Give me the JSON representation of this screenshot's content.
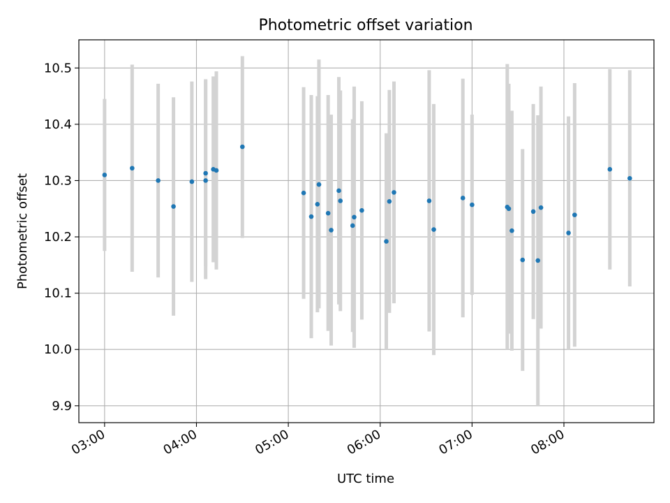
{
  "chart_data": {
    "type": "scatter",
    "title": "Photometric offset variation",
    "xlabel": "UTC time",
    "ylabel": "Photometric offset",
    "x_ticks": [
      "03:00",
      "04:00",
      "05:00",
      "06:00",
      "07:00",
      "08:00"
    ],
    "x_tick_hours": [
      3,
      4,
      5,
      6,
      7,
      8
    ],
    "y_ticks": [
      9.9,
      10.0,
      10.1,
      10.2,
      10.3,
      10.4,
      10.5
    ],
    "xlim_hours": [
      2.72,
      8.98
    ],
    "ylim": [
      9.87,
      10.55
    ],
    "grid": true,
    "colors": {
      "marker": "#1f77b4",
      "errorbar": "#d3d3d3",
      "grid": "#b0b0b0",
      "axes": "#000000"
    },
    "points": [
      {
        "t": "03:00",
        "y": 10.31,
        "lo": 10.175,
        "hi": 10.445
      },
      {
        "t": "03:18",
        "y": 10.322,
        "lo": 10.138,
        "hi": 10.506
      },
      {
        "t": "03:35",
        "y": 10.3,
        "lo": 10.128,
        "hi": 10.472
      },
      {
        "t": "03:45",
        "y": 10.254,
        "lo": 10.06,
        "hi": 10.448
      },
      {
        "t": "03:57",
        "y": 10.298,
        "lo": 10.12,
        "hi": 10.476
      },
      {
        "t": "04:06",
        "y": 10.313,
        "lo": 10.148,
        "hi": 10.478
      },
      {
        "t": "04:06",
        "y": 10.3,
        "lo": 10.125,
        "hi": 10.48
      },
      {
        "t": "04:11",
        "y": 10.32,
        "lo": 10.155,
        "hi": 10.485
      },
      {
        "t": "04:13",
        "y": 10.318,
        "lo": 10.142,
        "hi": 10.494
      },
      {
        "t": "04:30",
        "y": 10.36,
        "lo": 10.198,
        "hi": 10.521
      },
      {
        "t": "05:10",
        "y": 10.278,
        "lo": 10.09,
        "hi": 10.466
      },
      {
        "t": "05:15",
        "y": 10.236,
        "lo": 10.02,
        "hi": 10.452
      },
      {
        "t": "05:19",
        "y": 10.258,
        "lo": 10.066,
        "hi": 10.45
      },
      {
        "t": "05:20",
        "y": 10.293,
        "lo": 10.073,
        "hi": 10.515
      },
      {
        "t": "05:26",
        "y": 10.242,
        "lo": 10.033,
        "hi": 10.452
      },
      {
        "t": "05:28",
        "y": 10.212,
        "lo": 10.007,
        "hi": 10.417
      },
      {
        "t": "05:33",
        "y": 10.282,
        "lo": 10.08,
        "hi": 10.484
      },
      {
        "t": "05:34",
        "y": 10.264,
        "lo": 10.068,
        "hi": 10.46
      },
      {
        "t": "05:42",
        "y": 10.22,
        "lo": 10.031,
        "hi": 10.409
      },
      {
        "t": "05:43",
        "y": 10.235,
        "lo": 10.003,
        "hi": 10.467
      },
      {
        "t": "05:48",
        "y": 10.247,
        "lo": 10.053,
        "hi": 10.441
      },
      {
        "t": "06:04",
        "y": 10.192,
        "lo": 10.0,
        "hi": 10.384
      },
      {
        "t": "06:06",
        "y": 10.263,
        "lo": 10.065,
        "hi": 10.461
      },
      {
        "t": "06:09",
        "y": 10.279,
        "lo": 10.082,
        "hi": 10.476
      },
      {
        "t": "06:32",
        "y": 10.264,
        "lo": 10.032,
        "hi": 10.496
      },
      {
        "t": "06:35",
        "y": 10.213,
        "lo": 9.99,
        "hi": 10.436
      },
      {
        "t": "06:54",
        "y": 10.269,
        "lo": 10.057,
        "hi": 10.481
      },
      {
        "t": "07:00",
        "y": 10.257,
        "lo": 10.097,
        "hi": 10.417
      },
      {
        "t": "07:23",
        "y": 10.253,
        "lo": 10.0,
        "hi": 10.507
      },
      {
        "t": "07:24",
        "y": 10.25,
        "lo": 10.028,
        "hi": 10.472
      },
      {
        "t": "07:26",
        "y": 10.211,
        "lo": 9.998,
        "hi": 10.424
      },
      {
        "t": "07:33",
        "y": 10.159,
        "lo": 9.962,
        "hi": 10.356
      },
      {
        "t": "07:40",
        "y": 10.245,
        "lo": 10.054,
        "hi": 10.436
      },
      {
        "t": "07:43",
        "y": 10.158,
        "lo": 9.9,
        "hi": 10.416
      },
      {
        "t": "07:45",
        "y": 10.252,
        "lo": 10.037,
        "hi": 10.467
      },
      {
        "t": "08:03",
        "y": 10.207,
        "lo": 10.0,
        "hi": 10.414
      },
      {
        "t": "08:07",
        "y": 10.239,
        "lo": 10.005,
        "hi": 10.473
      },
      {
        "t": "08:30",
        "y": 10.32,
        "lo": 10.142,
        "hi": 10.498
      },
      {
        "t": "08:43",
        "y": 10.304,
        "lo": 10.112,
        "hi": 10.496
      }
    ]
  }
}
